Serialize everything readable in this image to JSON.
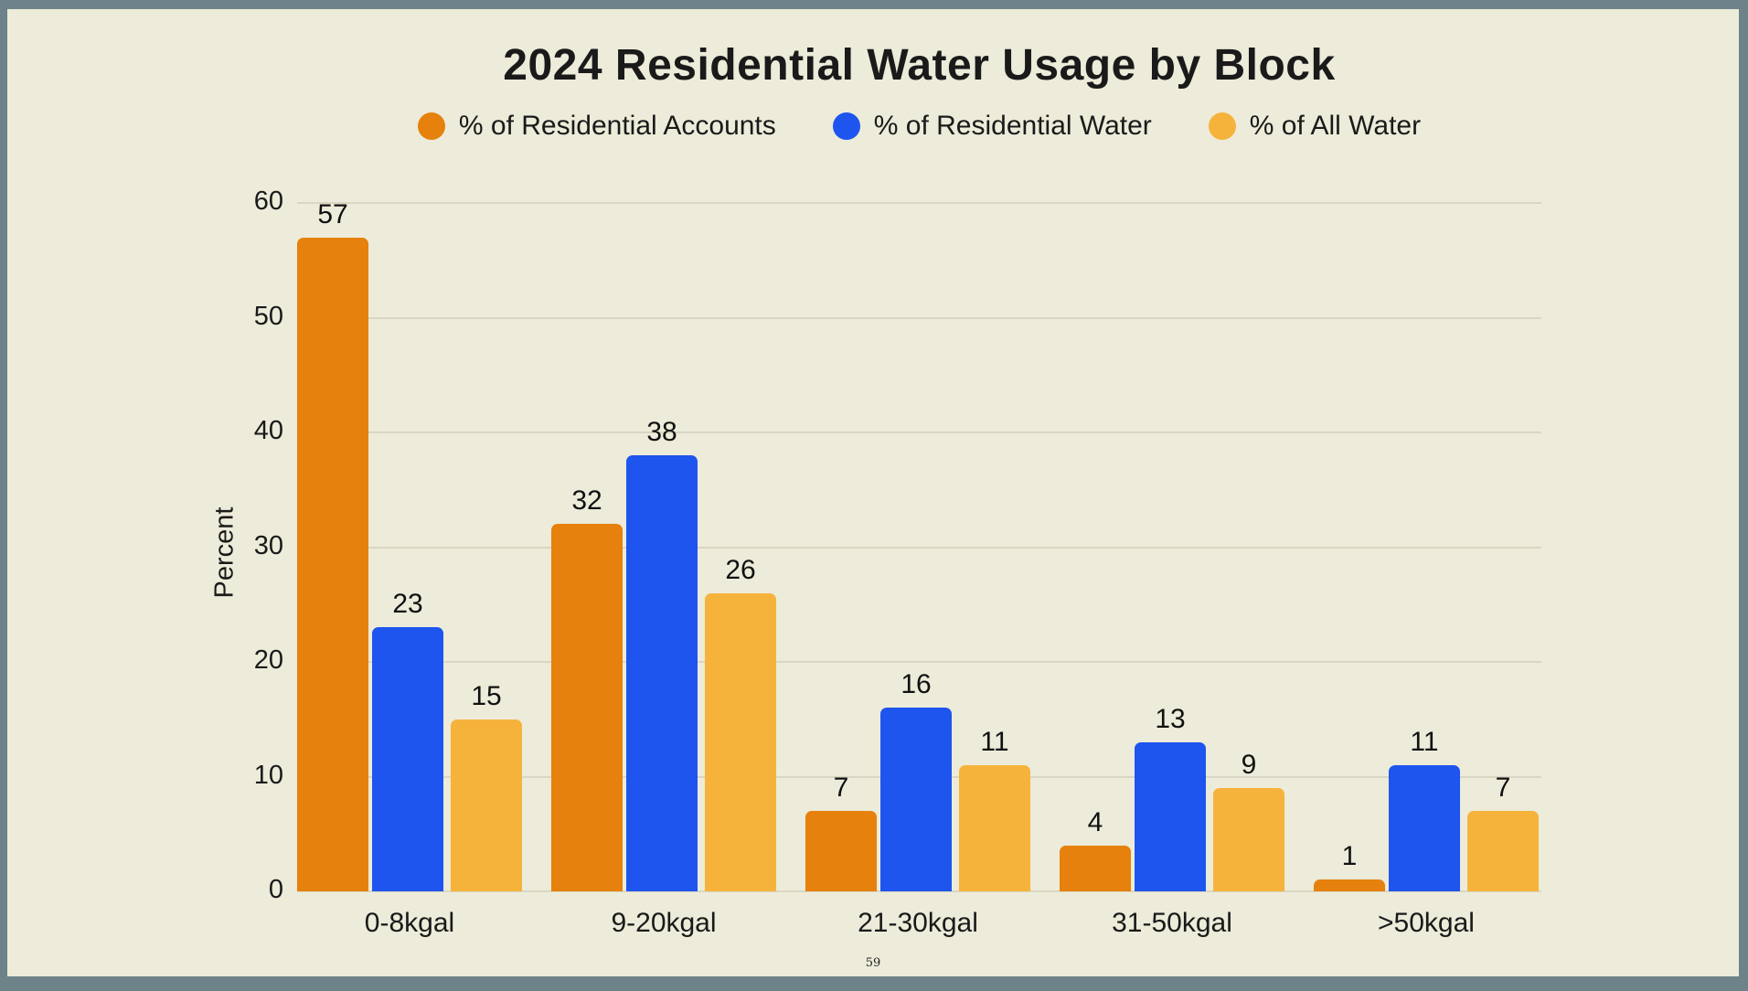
{
  "page": {
    "frame_color": "#6D8389",
    "canvas_color": "#EDEBD9",
    "page_number": "59"
  },
  "chart_data": {
    "type": "bar",
    "title": "2024 Residential Water Usage by Block",
    "ylabel": "Percent",
    "xlabel": "",
    "categories": [
      "0-8kgal",
      "9-20kgal",
      "21-30kgal",
      "31-50kgal",
      ">50kgal"
    ],
    "series": [
      {
        "name": "% of Residential Accounts",
        "color": "#E5810C",
        "values": [
          57,
          32,
          7,
          4,
          1
        ]
      },
      {
        "name": "% of Residential Water",
        "color": "#1E55EE",
        "values": [
          23,
          38,
          16,
          13,
          11
        ]
      },
      {
        "name": "% of All Water",
        "color": "#F6B33C",
        "values": [
          15,
          26,
          11,
          9,
          7
        ]
      }
    ],
    "ylim": [
      0,
      60
    ],
    "yticks": [
      0,
      10,
      20,
      30,
      40,
      50,
      60
    ],
    "grid": true,
    "legend_position": "top",
    "bar_value_labels": true,
    "gridline_color": "#D9D6C3",
    "text_color": "#1a1a1a"
  }
}
